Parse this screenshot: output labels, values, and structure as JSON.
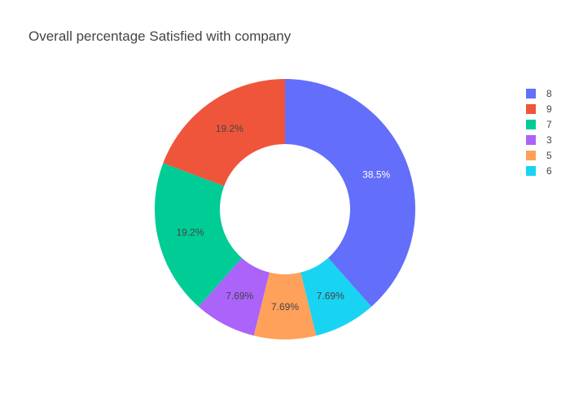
{
  "chart_data": {
    "type": "pie",
    "title": "Overall percentage Satisfied with company",
    "hole": 0.5,
    "sort": "descending",
    "direction": "clockwise",
    "start_angle_deg": 90,
    "legend_position": "right",
    "slices": [
      {
        "label": "8",
        "value": 5,
        "percent_text": "38.5%",
        "color": "#636efa",
        "text_color": "#ffffff"
      },
      {
        "label": "6",
        "value": 1,
        "percent_text": "7.69%",
        "color": "#19d3f3",
        "text_color": "#444444"
      },
      {
        "label": "5",
        "value": 1,
        "percent_text": "7.69%",
        "color": "#ffa15a",
        "text_color": "#444444"
      },
      {
        "label": "3",
        "value": 1,
        "percent_text": "7.69%",
        "color": "#ab63fa",
        "text_color": "#444444"
      },
      {
        "label": "7",
        "value": 2.5,
        "percent_text": "19.2%",
        "color": "#00cc96",
        "text_color": "#444444"
      },
      {
        "label": "9",
        "value": 2.5,
        "percent_text": "19.2%",
        "color": "#ef553b",
        "text_color": "#444444"
      }
    ],
    "legend_order": [
      "8",
      "9",
      "7",
      "3",
      "5",
      "6"
    ]
  }
}
